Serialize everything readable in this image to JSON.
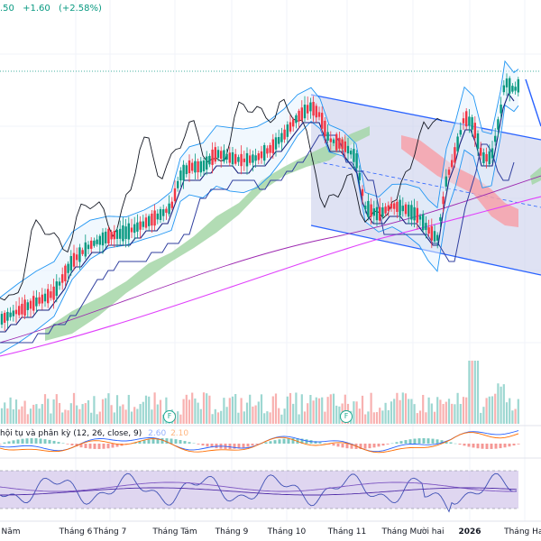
{
  "header": {
    "price_tail": ".50",
    "change": "+1.60",
    "change_pct": "(+2.58%)"
  },
  "macd": {
    "label": "hội tụ và phân kỳ (12, 26, close, 9)",
    "v1": "2.60",
    "v2": "2.10"
  },
  "badges": [
    "F",
    "F"
  ],
  "x_labels": [
    "Năm",
    "Tháng 6",
    "Tháng 7",
    "Tháng Tám",
    "Tháng 9",
    "Tháng 10",
    "Tháng 11",
    "Tháng Mười hai",
    "2026",
    "Tháng Hai"
  ],
  "colors": {
    "up": "#089981",
    "down": "#f23645",
    "band": "#2962ff",
    "cloud_up": "#a5d6a7",
    "cloud_down": "#f7a1a9",
    "sma": "#e040fb",
    "channel_fill": "#c5cae9",
    "rsi_fill": "#d1c4e9"
  },
  "chart_data": {
    "type": "candlestick",
    "title": "",
    "xlabel": "",
    "ylabel": "",
    "x_axis": [
      "Năm",
      "Tháng 6",
      "Tháng 7",
      "Tháng Tám",
      "Tháng 9",
      "Tháng 10",
      "Tháng 11",
      "Tháng Mười hai",
      "2026",
      "Tháng Hai"
    ],
    "last_change": 1.6,
    "last_change_pct": 2.58,
    "macd_values": [
      2.6,
      2.1
    ],
    "indicators": [
      "Bollinger Bands",
      "Ichimoku Cloud",
      "MACD (12, 26, close, 9)",
      "RSI",
      "Moving Average"
    ],
    "grid": true
  }
}
